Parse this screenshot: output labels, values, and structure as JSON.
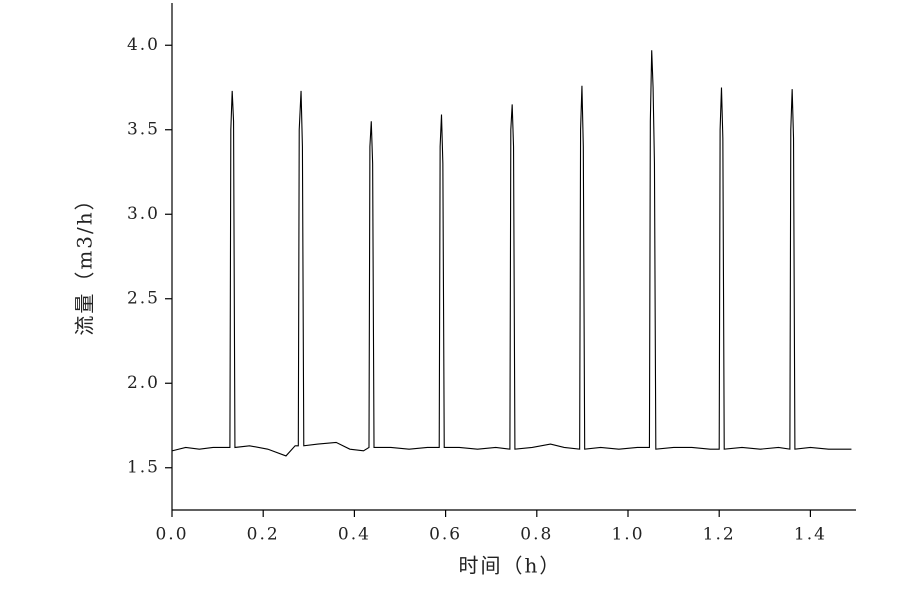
{
  "chart_data": {
    "type": "line",
    "xlabel": "时间（h）",
    "ylabel": "流量（m3/h）",
    "x": [
      0,
      0.03,
      0.06,
      0.09,
      0.12,
      0.127,
      0.129,
      0.132,
      0.135,
      0.138,
      0.17,
      0.21,
      0.25,
      0.27,
      0.277,
      0.279,
      0.283,
      0.286,
      0.289,
      0.32,
      0.36,
      0.39,
      0.42,
      0.432,
      0.434,
      0.437,
      0.44,
      0.443,
      0.48,
      0.52,
      0.56,
      0.586,
      0.588,
      0.591,
      0.594,
      0.597,
      0.63,
      0.67,
      0.71,
      0.741,
      0.743,
      0.746,
      0.749,
      0.752,
      0.79,
      0.83,
      0.86,
      0.894,
      0.896,
      0.899,
      0.902,
      0.905,
      0.94,
      0.98,
      1.02,
      1.047,
      1.049,
      1.052,
      1.055,
      1.058,
      1.061,
      1.1,
      1.14,
      1.18,
      1.2,
      1.202,
      1.205,
      1.208,
      1.211,
      1.25,
      1.29,
      1.33,
      1.355,
      1.357,
      1.36,
      1.363,
      1.366,
      1.4,
      1.44,
      1.49
    ],
    "values": [
      1.6,
      1.62,
      1.61,
      1.62,
      1.62,
      1.62,
      3.5,
      3.73,
      3.55,
      1.62,
      1.63,
      1.61,
      1.57,
      1.63,
      1.63,
      3.5,
      3.73,
      3.4,
      1.63,
      1.64,
      1.65,
      1.61,
      1.6,
      1.62,
      3.4,
      3.55,
      3.3,
      1.62,
      1.62,
      1.61,
      1.62,
      1.62,
      3.4,
      3.59,
      3.3,
      1.62,
      1.62,
      1.61,
      1.62,
      1.61,
      3.5,
      3.65,
      3.4,
      1.61,
      1.62,
      1.64,
      1.62,
      1.61,
      3.5,
      3.76,
      3.4,
      1.61,
      1.62,
      1.61,
      1.62,
      1.62,
      3.55,
      3.97,
      3.75,
      3.3,
      1.61,
      1.62,
      1.62,
      1.61,
      1.61,
      3.5,
      3.75,
      3.45,
      1.61,
      1.62,
      1.61,
      1.62,
      1.61,
      3.5,
      3.74,
      3.45,
      1.61,
      1.62,
      1.61,
      1.61
    ],
    "color": "#000000",
    "xlim": [
      0,
      1.5
    ],
    "xticks": [
      {
        "value": 0,
        "label": "0.0"
      },
      0.2,
      0.4,
      0.6,
      0.8,
      {
        "value": 1,
        "label": "1.0"
      },
      1.2,
      1.4
    ],
    "ylim": [
      1.25,
      4.25
    ],
    "yticks": [
      1.5,
      {
        "value": 2,
        "label": "2.0"
      },
      2.5,
      {
        "value": 3,
        "label": "3.0"
      },
      3.5,
      {
        "value": 4,
        "label": "4.0"
      }
    ]
  }
}
